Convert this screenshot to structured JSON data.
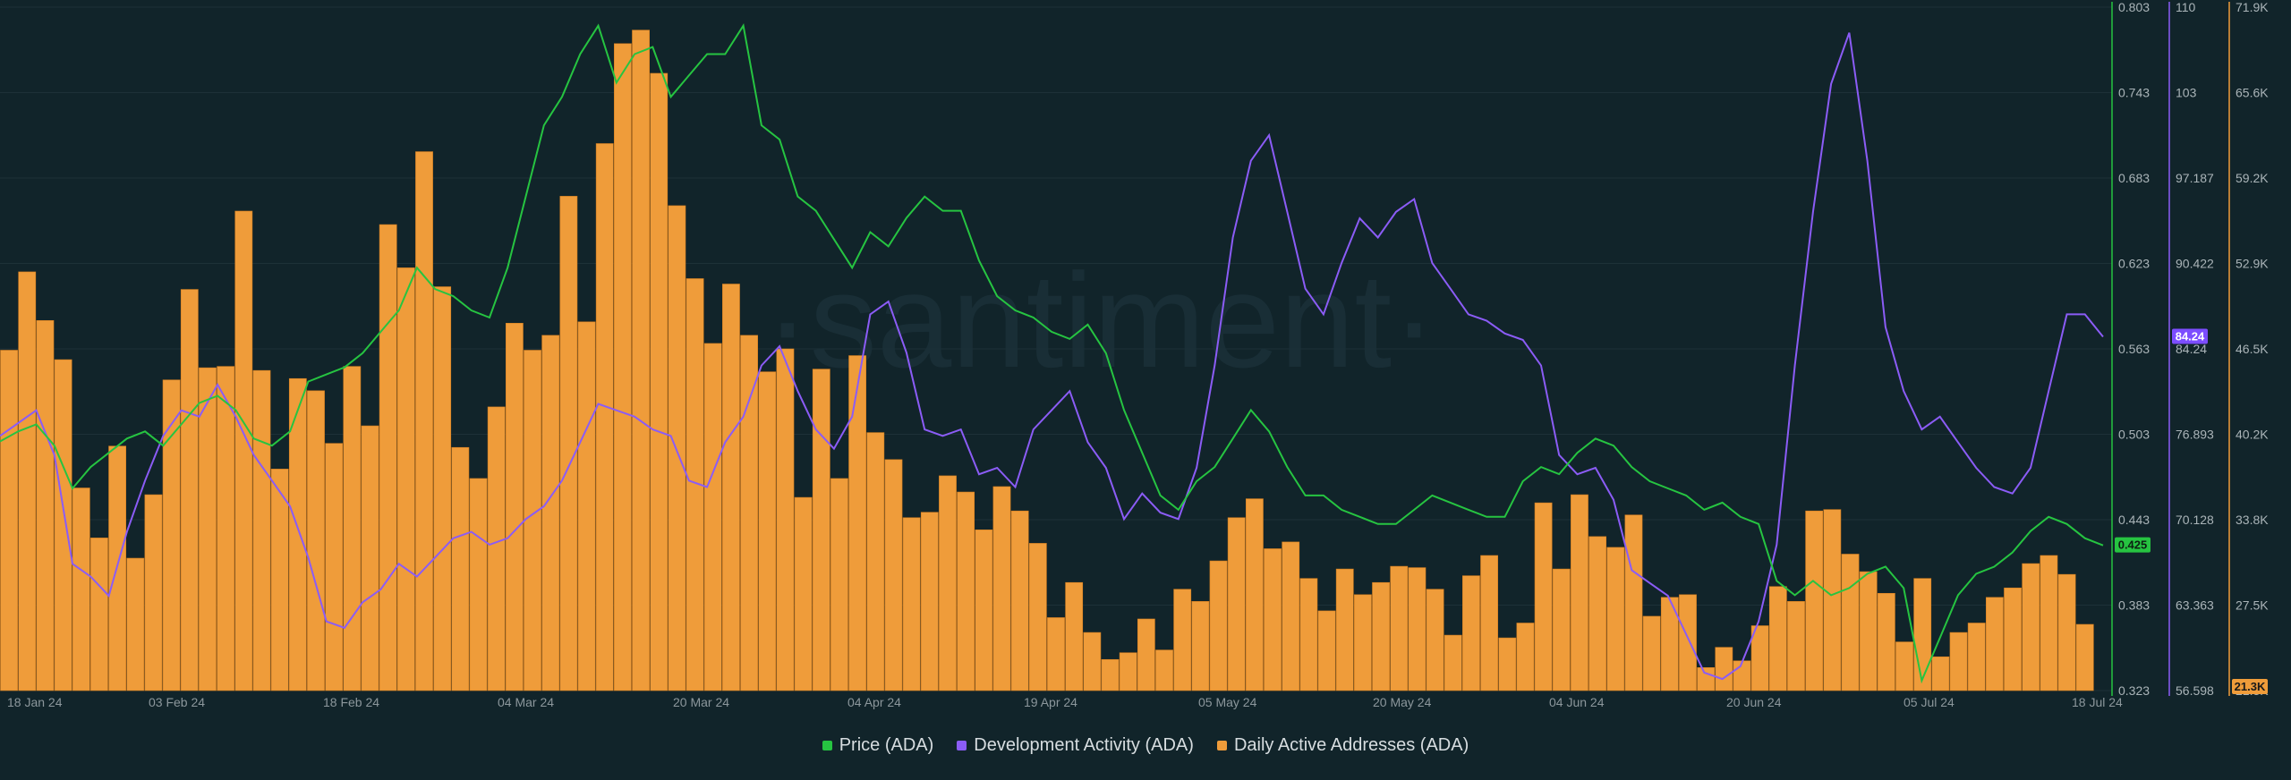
{
  "watermark": "·santiment·",
  "colors": {
    "background": "#11242a",
    "price": "#26c441",
    "dev": "#8b5cf6",
    "daa": "#ef9c3a",
    "daa_bar_edge": "#d67f1f",
    "gridline": "#1d3138",
    "axis_text": "#8c979c",
    "tick_text": "#aab4b8"
  },
  "chart_data": {
    "type": "bar",
    "title": "",
    "x_tick_labels": [
      "18 Jan 24",
      "03 Feb 24",
      "18 Feb 24",
      "04 Mar 24",
      "20 Mar 24",
      "04 Apr 24",
      "19 Apr 24",
      "05 May 24",
      "20 May 24",
      "04 Jun 24",
      "20 Jun 24",
      "05 Jul 24",
      "18 Jul 24"
    ],
    "x_range": [
      "2024-01-18",
      "2024-07-18"
    ],
    "series": [
      {
        "name": "Price (ADA)",
        "type": "line",
        "axis_ticks": [
          "0.803",
          "0.743",
          "0.683",
          "0.623",
          "0.563",
          "0.503",
          "0.443",
          "0.383",
          "0.323"
        ],
        "ylim": [
          0.323,
          0.803
        ],
        "current_value": "0.425",
        "values": [
          0.498,
          0.505,
          0.51,
          0.495,
          0.465,
          0.48,
          0.49,
          0.5,
          0.505,
          0.495,
          0.51,
          0.525,
          0.53,
          0.52,
          0.5,
          0.495,
          0.505,
          0.54,
          0.545,
          0.55,
          0.56,
          0.575,
          0.59,
          0.62,
          0.605,
          0.6,
          0.59,
          0.585,
          0.62,
          0.67,
          0.72,
          0.74,
          0.77,
          0.79,
          0.75,
          0.77,
          0.775,
          0.74,
          0.755,
          0.77,
          0.77,
          0.79,
          0.72,
          0.71,
          0.67,
          0.66,
          0.64,
          0.62,
          0.645,
          0.635,
          0.655,
          0.67,
          0.66,
          0.66,
          0.625,
          0.6,
          0.59,
          0.585,
          0.575,
          0.57,
          0.58,
          0.56,
          0.52,
          0.49,
          0.46,
          0.45,
          0.47,
          0.48,
          0.5,
          0.52,
          0.505,
          0.48,
          0.46,
          0.46,
          0.45,
          0.445,
          0.44,
          0.44,
          0.45,
          0.46,
          0.455,
          0.45,
          0.445,
          0.445,
          0.47,
          0.48,
          0.475,
          0.49,
          0.5,
          0.495,
          0.48,
          0.47,
          0.465,
          0.46,
          0.45,
          0.455,
          0.445,
          0.44,
          0.4,
          0.39,
          0.4,
          0.39,
          0.395,
          0.405,
          0.41,
          0.395,
          0.33,
          0.36,
          0.39,
          0.405,
          0.41,
          0.42,
          0.435,
          0.445,
          0.44,
          0.43,
          0.425
        ]
      },
      {
        "name": "Development Activity (ADA)",
        "type": "line",
        "axis_ticks": [
          "110",
          "103",
          "97.187",
          "90.422",
          "84.24",
          "76.893",
          "70.128",
          "63.363",
          "56.598"
        ],
        "ylim": [
          56.598,
          110
        ],
        "current_value": "84.24",
        "values": [
          76.5,
          77.5,
          78.5,
          75.0,
          66.5,
          65.5,
          64.0,
          69.0,
          73.0,
          76.5,
          78.5,
          78.0,
          80.5,
          78.0,
          75.0,
          73.0,
          71.0,
          67.0,
          62.0,
          61.5,
          63.5,
          64.5,
          66.5,
          65.5,
          67.0,
          68.5,
          69.0,
          68.0,
          68.5,
          70.0,
          71.0,
          73.0,
          76.0,
          79.0,
          78.5,
          78.0,
          77.0,
          76.5,
          73.0,
          72.5,
          76.0,
          78.0,
          82.0,
          83.5,
          80.0,
          77.0,
          75.5,
          78.0,
          86.0,
          87.0,
          83.0,
          77.0,
          76.5,
          77.0,
          73.5,
          74.0,
          72.5,
          77.0,
          78.5,
          80.0,
          76.0,
          74.0,
          70.0,
          72.0,
          70.5,
          70.0,
          74.0,
          82.0,
          92.0,
          98.0,
          100.0,
          94.0,
          88.0,
          86.0,
          90.0,
          93.5,
          92.0,
          94.0,
          95.0,
          90.0,
          88.0,
          86.0,
          85.5,
          84.5,
          84.0,
          82.0,
          75.0,
          73.5,
          74.0,
          71.5,
          66.0,
          65.0,
          64.0,
          61.0,
          58.0,
          57.5,
          58.5,
          62.0,
          68.0,
          82.0,
          94.0,
          104.0,
          108.0,
          98.0,
          85.0,
          80.0,
          77.0,
          78.0,
          76.0,
          74.0,
          72.5,
          72.0,
          74.0,
          80.0,
          86.0,
          86.0,
          84.24
        ]
      },
      {
        "name": "Daily Active Addresses (ADA)",
        "type": "bar",
        "axis_ticks": [
          "71.9K",
          "65.6K",
          "59.2K",
          "52.9K",
          "46.5K",
          "40.2K",
          "33.8K",
          "27.5K",
          "21.3K"
        ],
        "ylim": [
          21300,
          71900
        ],
        "current_value": "21.3K",
        "values": [
          46500,
          52300,
          48700,
          45800,
          36300,
          32600,
          39400,
          31100,
          35800,
          44300,
          51000,
          45200,
          45300,
          56800,
          45000,
          37700,
          44400,
          43500,
          39600,
          45300,
          40900,
          55800,
          52600,
          61200,
          51200,
          39300,
          37000,
          42300,
          48500,
          46500,
          47600,
          57900,
          48600,
          61800,
          69200,
          70200,
          67000,
          57200,
          51800,
          47000,
          51400,
          47600,
          44900,
          46600,
          35600,
          45100,
          37000,
          46100,
          40400,
          38400,
          34100,
          34500,
          37200,
          36000,
          33200,
          36400,
          34600,
          32200,
          26700,
          29300,
          25600,
          23600,
          24100,
          26600,
          24300,
          28800,
          27900,
          30900,
          34100,
          35500,
          31800,
          32300,
          29600,
          27200,
          30300,
          28400,
          29300,
          30500,
          30400,
          28800,
          25400,
          29800,
          31300,
          25200,
          26300,
          35200,
          30300,
          35800,
          32700,
          31900,
          34300,
          26800,
          28200,
          28400,
          23000,
          24500,
          23500,
          26100,
          29000,
          27900,
          34600,
          34700,
          31400,
          30100,
          28500,
          24900,
          29600,
          23800,
          25600,
          26300,
          28200,
          28900,
          30700,
          31300,
          29900,
          26200,
          21300
        ]
      }
    ],
    "legend_position": "bottom-center",
    "grid": "horizontal"
  },
  "legend": [
    {
      "label": "Price (ADA)",
      "color": "#26c441"
    },
    {
      "label": "Development Activity (ADA)",
      "color": "#8b5cf6"
    },
    {
      "label": "Daily Active Addresses (ADA)",
      "color": "#ef9c3a"
    }
  ]
}
